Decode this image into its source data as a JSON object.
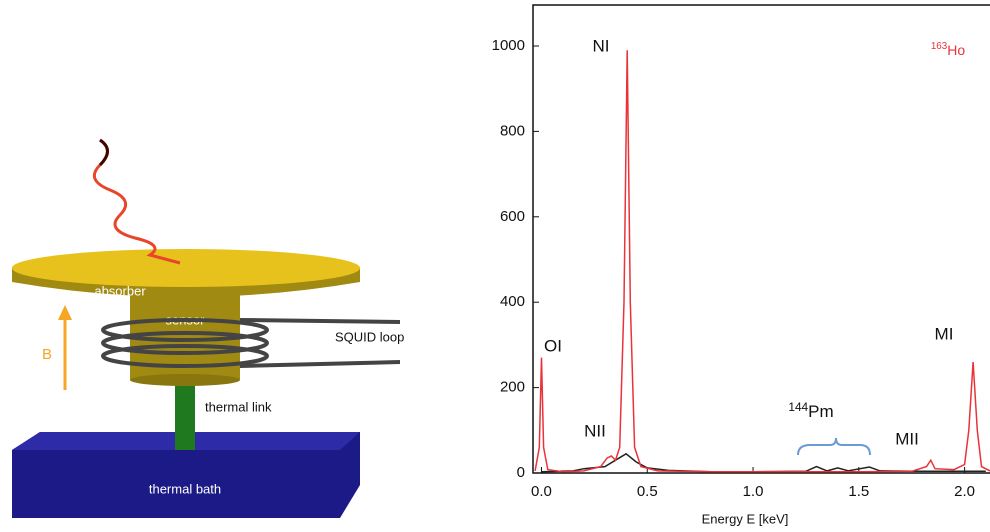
{
  "diagram": {
    "absorber": "absorber",
    "sensor": "sensor",
    "squid": "SQUID loop",
    "link": "thermal link",
    "bath": "thermal bath",
    "field": "B"
  },
  "chart_data": {
    "type": "line",
    "xlabel": "Energy E  [keV]",
    "annotations": [
      "OI",
      "NI",
      "NII",
      "MII",
      "MI"
    ],
    "isotope_labels": [
      {
        "sup": "144",
        "text": "Pm"
      },
      {
        "sup": "163",
        "text": "Ho"
      }
    ],
    "xlim": [
      -0.04,
      2.12
    ],
    "ylim": [
      0,
      1096
    ],
    "xticks": [
      {
        "value": 0,
        "label": "0.0"
      },
      0.5,
      {
        "value": 1,
        "label": "1.0"
      },
      1.5,
      {
        "value": 2,
        "label": "2.0"
      }
    ],
    "yticks": [
      0,
      200,
      400,
      600,
      800,
      1000
    ],
    "series": [
      {
        "color": "#222222",
        "x": [
          0.0,
          0.15,
          0.2,
          0.3,
          0.35,
          0.4,
          0.45,
          0.5,
          0.6,
          0.8,
          1.0,
          1.25,
          1.3,
          1.35,
          1.4,
          1.45,
          1.55,
          1.6,
          1.8,
          2.0,
          2.1
        ],
        "values": [
          3,
          5,
          10,
          15,
          30,
          45,
          25,
          12,
          6,
          3,
          3,
          4,
          15,
          5,
          12,
          5,
          14,
          5,
          4,
          4,
          4
        ]
      },
      {
        "color": "#e8333a",
        "x": [
          -0.03,
          -0.01,
          0.0,
          0.01,
          0.03,
          0.1,
          0.2,
          0.28,
          0.31,
          0.33,
          0.35,
          0.37,
          0.39,
          0.405,
          0.42,
          0.44,
          0.47,
          0.55,
          0.8,
          1.0,
          1.2,
          1.5,
          1.75,
          1.82,
          1.84,
          1.86,
          1.95,
          2.0,
          2.02,
          2.04,
          2.06,
          2.08,
          2.12
        ],
        "values": [
          5,
          60,
          270,
          60,
          8,
          3,
          5,
          15,
          35,
          40,
          30,
          60,
          400,
          990,
          400,
          60,
          15,
          5,
          3,
          3,
          3,
          3,
          4,
          15,
          30,
          10,
          8,
          20,
          100,
          260,
          100,
          15,
          5
        ]
      }
    ]
  }
}
